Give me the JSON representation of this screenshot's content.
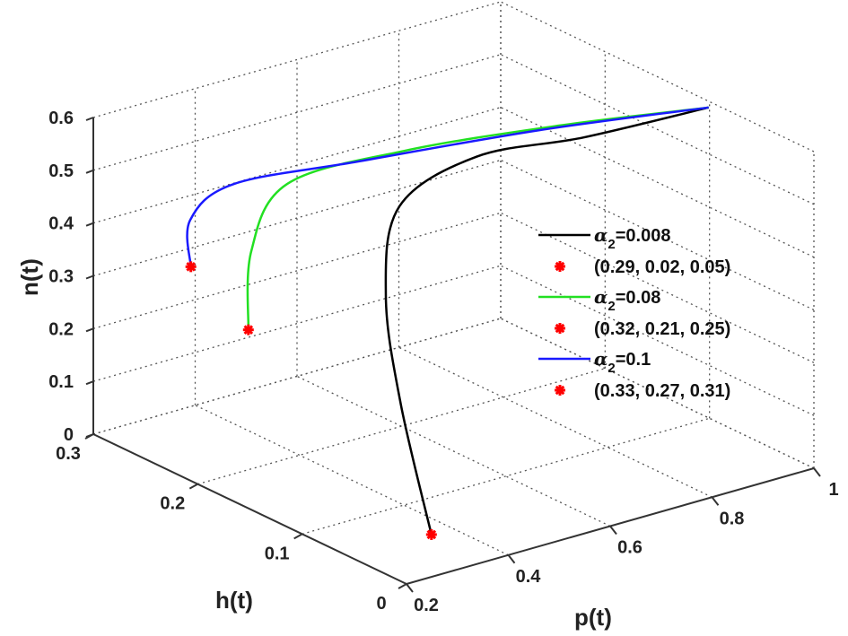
{
  "chart_data": {
    "type": "line3d",
    "title": "",
    "xlabel": "p(t)",
    "ylabel": "h(t)",
    "zlabel": "n(t)",
    "xlim": [
      0.2,
      1
    ],
    "ylim": [
      0,
      0.3
    ],
    "zlim": [
      0,
      0.6
    ],
    "xticks": [
      0.2,
      0.4,
      0.6,
      0.8,
      1
    ],
    "yticks": [
      0,
      0.1,
      0.2,
      0.3
    ],
    "zticks": [
      0,
      0.1,
      0.2,
      0.3,
      0.4,
      0.5,
      0.6
    ],
    "xtick_labels": [
      "0.2",
      "0.4",
      "0.6",
      "0.8",
      "1"
    ],
    "ytick_labels": [
      "0",
      "0.1",
      "0.2",
      "0.3"
    ],
    "ztick_labels": [
      "0",
      "0.1",
      "0.2",
      "0.3",
      "0.4",
      "0.5",
      "0.6"
    ],
    "grid": true,
    "legend_position": "right",
    "series": [
      {
        "name": "α2=0.008",
        "label_main": "α",
        "label_sub": "2",
        "label_value": "=0.008",
        "color": "#000000",
        "points": [
          [
            0.29,
            0.02,
            0.05
          ],
          [
            0.25,
            0.03,
            0.3
          ],
          [
            0.264,
            0.051,
            0.48
          ],
          [
            0.389,
            0.099,
            0.57
          ],
          [
            0.58,
            0.118,
            0.594
          ],
          [
            0.753,
            0.1,
            0.6
          ],
          [
            0.984,
            0.093,
            0.6
          ]
        ],
        "start_marker": {
          "label": "(0.29, 0.02, 0.05)",
          "point": [
            0.29,
            0.02,
            0.05
          ],
          "color": "#ff0000"
        }
      },
      {
        "name": "α2=0.08",
        "label_main": "α",
        "label_sub": "2",
        "label_value": "=0.08",
        "color": "#22e022",
        "points": [
          [
            0.32,
            0.21,
            0.25
          ],
          [
            0.377,
            0.235,
            0.36
          ],
          [
            0.39,
            0.207,
            0.51
          ],
          [
            0.538,
            0.167,
            0.57
          ],
          [
            0.758,
            0.128,
            0.594
          ],
          [
            0.984,
            0.093,
            0.6
          ]
        ],
        "start_marker": {
          "label": "(0.32, 0.21, 0.25)",
          "point": [
            0.32,
            0.21,
            0.25
          ],
          "color": "#ff0000"
        }
      },
      {
        "name": "α2=0.1",
        "label_main": "α",
        "label_sub": "2",
        "label_value": "=0.1",
        "color": "#1a1aff",
        "points": [
          [
            0.33,
            0.27,
            0.31
          ],
          [
            0.3,
            0.256,
            0.42
          ],
          [
            0.324,
            0.226,
            0.51
          ],
          [
            0.455,
            0.17,
            0.57
          ],
          [
            0.724,
            0.129,
            0.594
          ],
          [
            0.984,
            0.093,
            0.6
          ]
        ],
        "start_marker": {
          "label": "(0.33, 0.27, 0.31)",
          "point": [
            0.33,
            0.27,
            0.31
          ],
          "color": "#ff0000"
        }
      }
    ]
  }
}
